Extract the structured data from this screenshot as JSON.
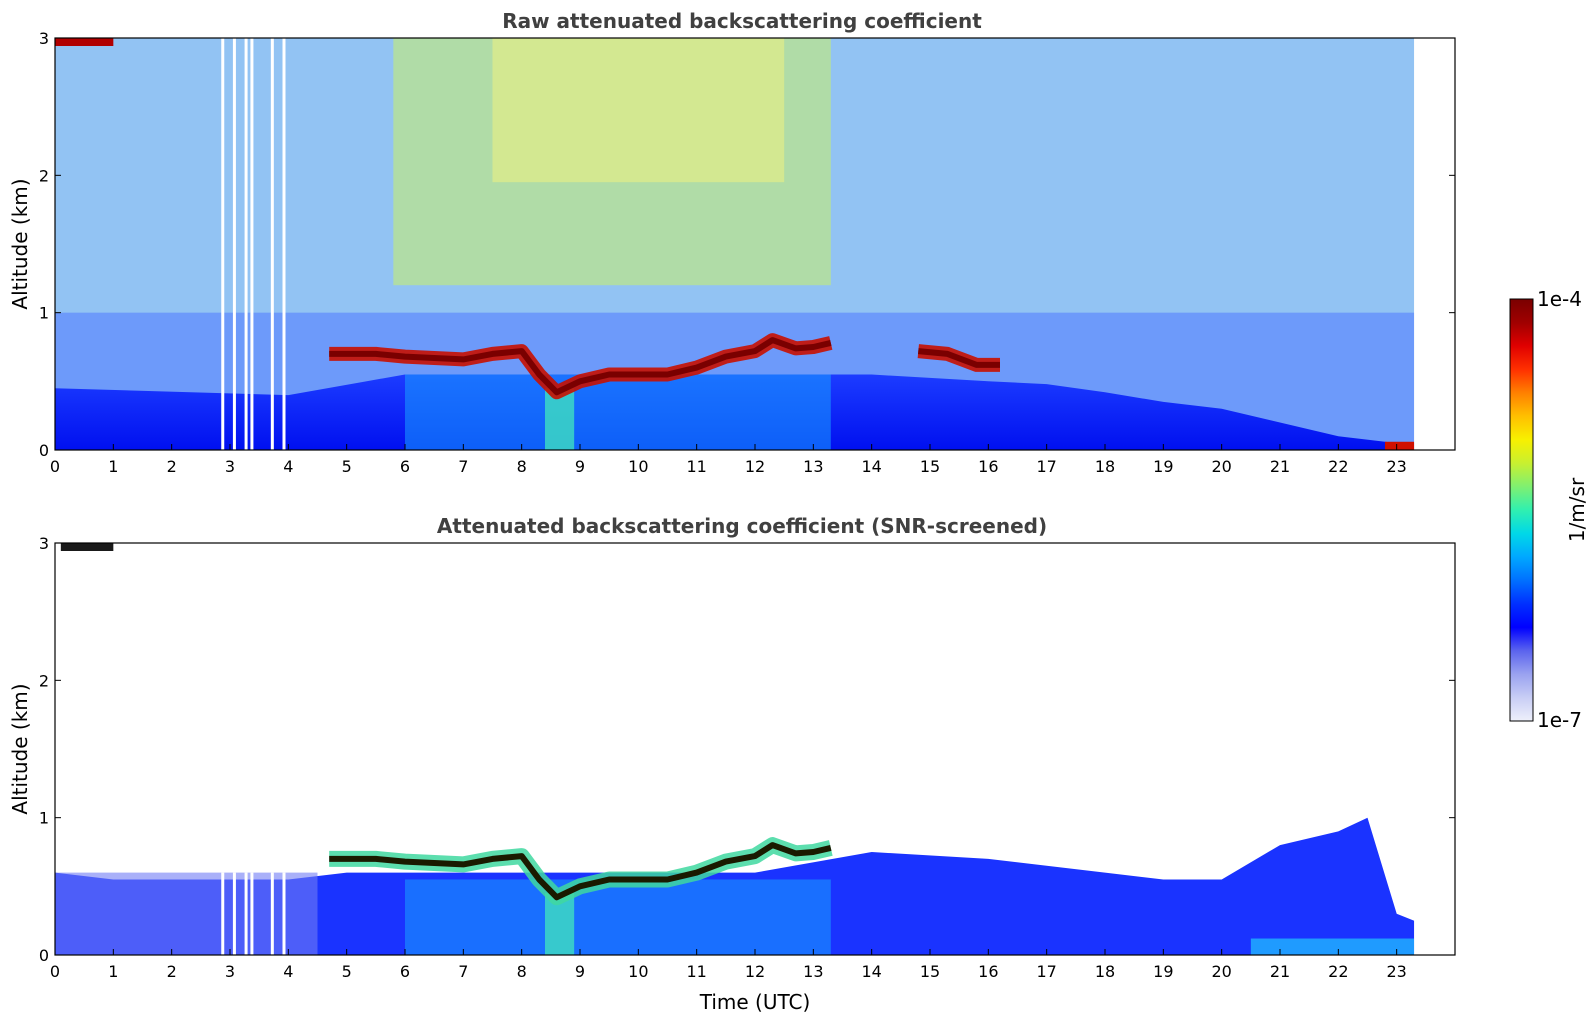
{
  "chart_data": [
    {
      "type": "heatmap",
      "title": "Raw attenuated backscattering coefficient",
      "xlabel": "",
      "ylabel": "Altitude (km)",
      "xlim": [
        0,
        24
      ],
      "ylim": [
        0,
        3
      ],
      "xticks": [
        "0",
        "1",
        "2",
        "3",
        "4",
        "5",
        "6",
        "7",
        "8",
        "9",
        "10",
        "11",
        "12",
        "13",
        "14",
        "15",
        "16",
        "17",
        "18",
        "19",
        "20",
        "21",
        "22",
        "23"
      ],
      "yticks": [
        "0",
        "1",
        "2",
        "3"
      ],
      "data_end_hour": 23.3,
      "features": {
        "cloud_layer": {
          "hours": [
            4.7,
            5.5,
            6.0,
            6.5,
            7.0,
            7.5,
            8.0,
            8.3,
            8.6,
            9.0,
            9.5,
            10.0,
            10.5,
            11.0,
            11.5,
            12.0,
            12.3,
            12.7,
            13.0,
            13.3
          ],
          "altitude_km": [
            0.7,
            0.7,
            0.68,
            0.67,
            0.66,
            0.7,
            0.72,
            0.55,
            0.42,
            0.5,
            0.55,
            0.55,
            0.55,
            0.6,
            0.68,
            0.72,
            0.8,
            0.74,
            0.75,
            0.78
          ]
        },
        "cloud_layer_2": {
          "hours": [
            14.8,
            15.3,
            15.8,
            16.2
          ],
          "altitude_km": [
            0.72,
            0.7,
            0.62,
            0.62
          ]
        },
        "boundary_layer_top": {
          "hours": [
            0,
            4,
            6,
            8,
            10,
            12,
            14,
            16,
            17,
            18,
            19,
            20,
            21,
            22,
            23,
            23.3
          ],
          "altitude_km": [
            0.45,
            0.4,
            0.55,
            0.55,
            0.55,
            0.55,
            0.55,
            0.5,
            0.48,
            0.42,
            0.35,
            0.3,
            0.2,
            0.1,
            0.05,
            0.05
          ]
        },
        "high_backscatter_top": {
          "hours": [
            0.0,
            1.0
          ],
          "altitude_km": [
            2.95,
            3.0
          ]
        },
        "data_gaps_hours": [
          2.85,
          3.05,
          3.25,
          3.35,
          3.7,
          3.9
        ]
      }
    },
    {
      "type": "heatmap",
      "title": "Attenuated backscattering coefficient (SNR-screened)",
      "xlabel": "Time (UTC)",
      "ylabel": "Altitude (km)",
      "xlim": [
        0,
        24
      ],
      "ylim": [
        0,
        3
      ],
      "xticks": [
        "0",
        "1",
        "2",
        "3",
        "4",
        "5",
        "6",
        "7",
        "8",
        "9",
        "10",
        "11",
        "12",
        "13",
        "14",
        "15",
        "16",
        "17",
        "18",
        "19",
        "20",
        "21",
        "22",
        "23"
      ],
      "yticks": [
        "0",
        "1",
        "2",
        "3"
      ],
      "data_end_hour": 23.3,
      "features": {
        "cloud_layer": {
          "hours": [
            4.7,
            5.5,
            6.0,
            6.5,
            7.0,
            7.5,
            8.0,
            8.3,
            8.6,
            9.0,
            9.5,
            10.0,
            10.5,
            11.0,
            11.5,
            12.0,
            12.3,
            12.7,
            13.0,
            13.3
          ],
          "altitude_km": [
            0.7,
            0.7,
            0.68,
            0.67,
            0.66,
            0.7,
            0.72,
            0.55,
            0.42,
            0.5,
            0.55,
            0.55,
            0.55,
            0.6,
            0.68,
            0.72,
            0.8,
            0.74,
            0.75,
            0.78
          ]
        },
        "boundary_layer_top": {
          "hours": [
            0,
            1,
            2,
            3,
            4,
            5,
            6,
            8,
            10,
            12,
            14,
            16,
            17,
            18,
            19,
            20,
            21,
            22,
            22.5,
            23,
            23.3
          ],
          "altitude_km": [
            0.6,
            0.55,
            0.55,
            0.55,
            0.55,
            0.6,
            0.6,
            0.6,
            0.6,
            0.6,
            0.75,
            0.7,
            0.65,
            0.6,
            0.55,
            0.55,
            0.8,
            0.9,
            1.0,
            0.3,
            0.25
          ]
        }
      }
    }
  ],
  "colorbar": {
    "label": "1/m/sr",
    "max_label": "1e-4",
    "min_label": "1e-7",
    "colors": [
      "#eef0fb",
      "#c8cdf5",
      "#9aa2f0",
      "#5a63ee",
      "#0000ff",
      "#0030ff",
      "#0070ff",
      "#00a8ff",
      "#00d8e8",
      "#30f0b0",
      "#80f070",
      "#c8f030",
      "#f8f000",
      "#ffc000",
      "#ff8000",
      "#ff3000",
      "#e00000",
      "#a00000",
      "#7a0000"
    ]
  }
}
